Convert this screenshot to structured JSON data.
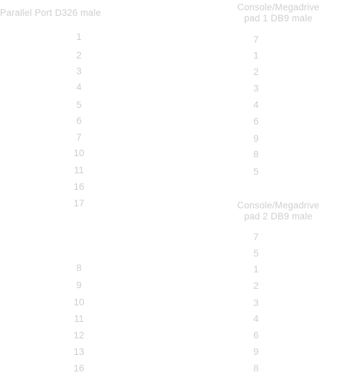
{
  "left": {
    "header": "Parallel Port D326 male",
    "groups": [
      {
        "rows": [
          "1",
          "2",
          "3",
          "4",
          "5",
          "6",
          "7",
          "10",
          "11",
          "16",
          "17"
        ]
      },
      {
        "rows": [
          "8",
          "9",
          "10",
          "11",
          "12",
          "13",
          "16"
        ]
      }
    ]
  },
  "right": {
    "groups": [
      {
        "header_line1": "Console/Megadrive",
        "header_line2": "pad 1 DB9 male",
        "rows": [
          "7",
          "1",
          "2",
          "3",
          "4",
          "6",
          "9",
          "8",
          "5"
        ]
      },
      {
        "header_line1": "Console/Megadrive",
        "header_line2": "pad 2 DB9 male",
        "rows": [
          "7",
          "5",
          "1",
          "2",
          "3",
          "4",
          "6",
          "9",
          "8"
        ]
      }
    ]
  }
}
